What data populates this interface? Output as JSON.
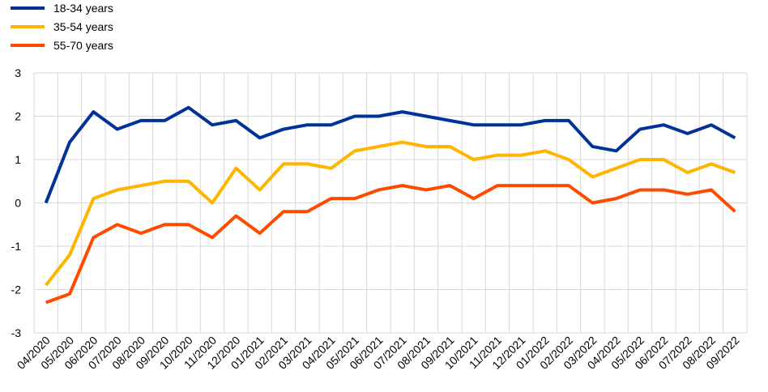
{
  "chart_data": {
    "type": "line",
    "title": "",
    "xlabel": "",
    "ylabel": "",
    "ylim": [
      -3,
      3
    ],
    "yticks": [
      -3,
      -2,
      -1,
      0,
      1,
      2,
      3
    ],
    "grid": true,
    "legend_position": "top-left",
    "categories": [
      "04/2020",
      "05/2020",
      "06/2020",
      "07/2020",
      "08/2020",
      "09/2020",
      "10/2020",
      "11/2020",
      "12/2020",
      "01/2021",
      "02/2021",
      "03/2021",
      "04/2021",
      "05/2021",
      "06/2021",
      "07/2021",
      "08/2021",
      "09/2021",
      "10/2021",
      "11/2021",
      "12/2021",
      "01/2022",
      "02/2022",
      "03/2022",
      "04/2022",
      "05/2022",
      "06/2022",
      "07/2022",
      "08/2022",
      "09/2022"
    ],
    "series": [
      {
        "name": "18-34 years",
        "color": "#003299",
        "values": [
          0,
          1.4,
          2.1,
          1.7,
          1.9,
          1.9,
          2.2,
          1.8,
          1.9,
          1.5,
          1.7,
          1.8,
          1.8,
          2.0,
          2.0,
          2.1,
          2.0,
          1.9,
          1.8,
          1.8,
          1.8,
          1.9,
          1.9,
          1.3,
          1.2,
          1.7,
          1.8,
          1.6,
          1.8,
          1.5
        ]
      },
      {
        "name": "35-54 years",
        "color": "#FFB400",
        "values": [
          -1.9,
          -1.2,
          0.1,
          0.3,
          0.4,
          0.5,
          0.5,
          0.0,
          0.8,
          0.3,
          0.9,
          0.9,
          0.8,
          1.2,
          1.3,
          1.4,
          1.3,
          1.3,
          1.0,
          1.1,
          1.1,
          1.2,
          1.0,
          0.6,
          0.8,
          1.0,
          1.0,
          0.7,
          0.9,
          0.7
        ]
      },
      {
        "name": "55-70 years",
        "color": "#FF4B00",
        "values": [
          -2.3,
          -2.1,
          -0.8,
          -0.5,
          -0.7,
          -0.5,
          -0.5,
          -0.8,
          -0.3,
          -0.7,
          -0.2,
          -0.2,
          0.1,
          0.1,
          0.3,
          0.4,
          0.3,
          0.4,
          0.1,
          0.4,
          0.4,
          0.4,
          0.4,
          0.0,
          0.1,
          0.3,
          0.3,
          0.2,
          0.3,
          -0.2
        ]
      }
    ]
  }
}
